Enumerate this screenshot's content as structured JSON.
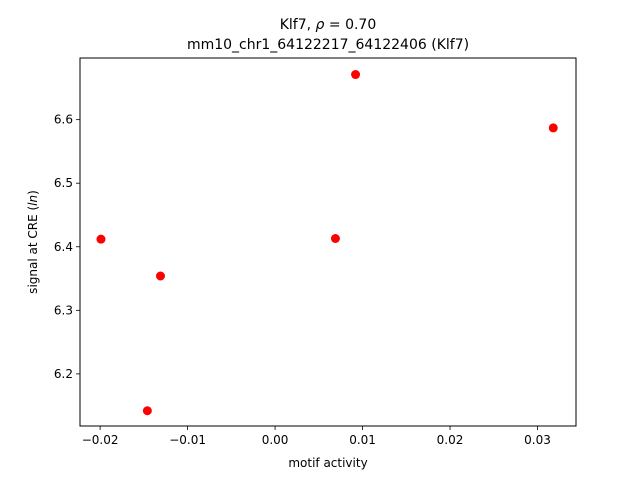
{
  "chart_data": {
    "type": "scatter",
    "title_line1_prefix": "Klf7, ",
    "title_rho_symbol": "ρ",
    "title_rho_rest": " = 0.70",
    "title_line2": "mm10_chr1_64122217_64122406 (Klf7)",
    "xlabel": "motif activity",
    "ylabel_prefix": "signal at CRE (",
    "ylabel_italic": "ln",
    "ylabel_suffix": ")",
    "xlim": [
      -0.0223,
      0.0344
    ],
    "ylim": [
      6.118,
      6.697
    ],
    "xticks": [
      -0.02,
      -0.01,
      0.0,
      0.01,
      0.02,
      0.03
    ],
    "xtick_labels": [
      "−0.02",
      "−0.01",
      "0.00",
      "0.01",
      "0.02",
      "0.03"
    ],
    "yticks": [
      6.2,
      6.3,
      6.4,
      6.5,
      6.6
    ],
    "ytick_labels": [
      "6.2",
      "6.3",
      "6.4",
      "6.5",
      "6.6"
    ],
    "point_color": "#ff0000",
    "points": [
      {
        "x": -0.0199,
        "y": 6.412
      },
      {
        "x": -0.0146,
        "y": 6.142
      },
      {
        "x": -0.0131,
        "y": 6.354
      },
      {
        "x": 0.0069,
        "y": 6.413
      },
      {
        "x": 0.0092,
        "y": 6.671
      },
      {
        "x": 0.0318,
        "y": 6.587
      }
    ]
  }
}
